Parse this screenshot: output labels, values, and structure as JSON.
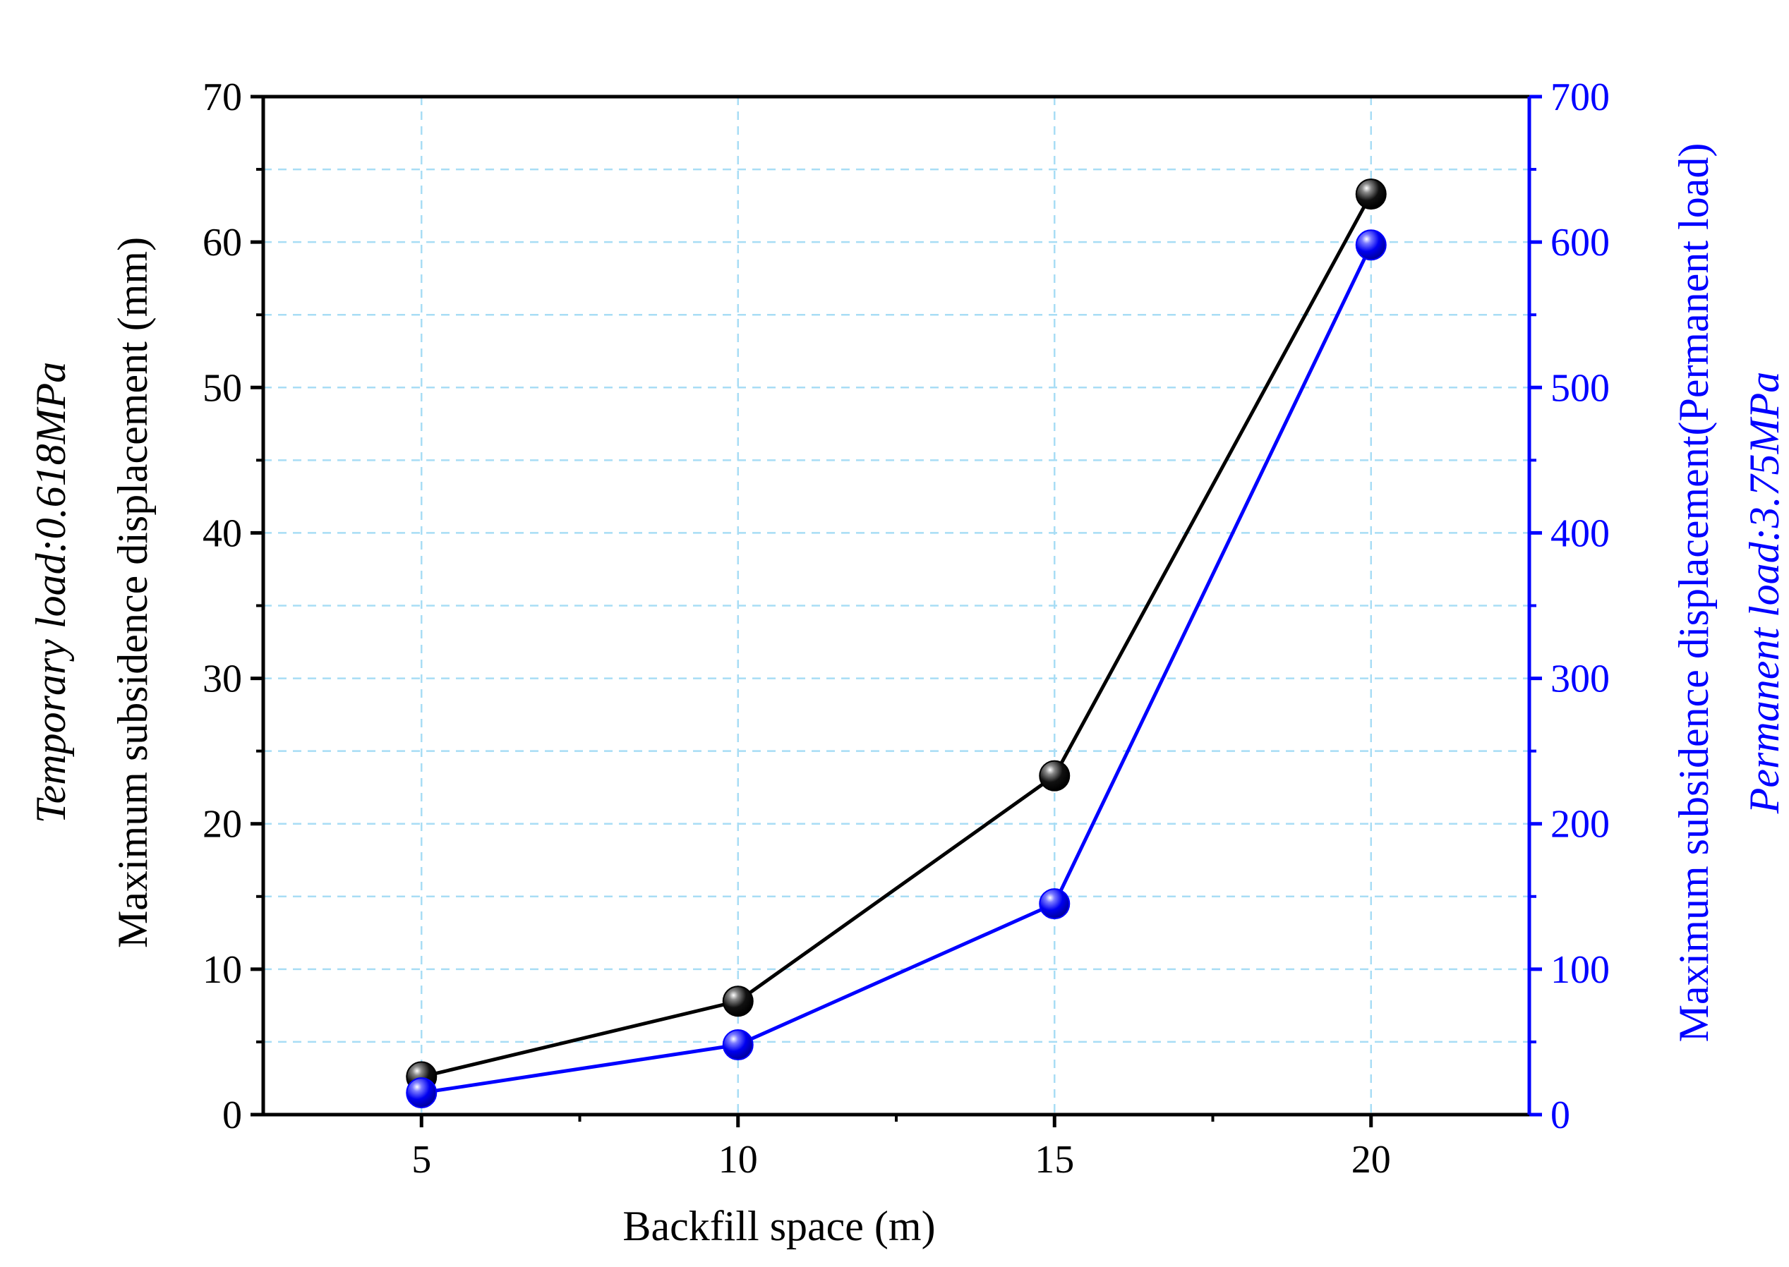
{
  "colors": {
    "left_axis": "#000000",
    "right_axis": "#0000ff",
    "series_temporary": "#000000",
    "series_permanent": "#0000ff",
    "grid": "#a8ddf5"
  },
  "labels": {
    "x_title": "Backfill space (m)",
    "y_left_title": "Maximum subsidence displacement (mm)",
    "y_left_subtitle": "Temporary load:0.618MPa",
    "y_right_title": "Maximum subsidence displacement(Permanent load)",
    "y_right_subtitle": "Permanent load:3.75MPa"
  },
  "chart_data": {
    "type": "line",
    "x": [
      5,
      10,
      15,
      20
    ],
    "xlim": [
      2.5,
      22.5
    ],
    "x_ticks": [
      "5",
      "10",
      "15",
      "20"
    ],
    "xlabel": "Backfill space (m)",
    "ylabel": "Maximum subsidence displacement (mm)",
    "ylabel_right": "Maximum subsidence displacement(Permanent load)",
    "ylim": [
      0,
      70
    ],
    "ylim_right": [
      0,
      700
    ],
    "y_ticks": [
      "0",
      "10",
      "20",
      "30",
      "40",
      "50",
      "60",
      "70"
    ],
    "y_ticks_right": [
      "0",
      "100",
      "200",
      "300",
      "400",
      "500",
      "600",
      "700"
    ],
    "grid": true,
    "grid_style": "dashed",
    "marker": "sphere",
    "series": [
      {
        "name": "Temporary load:0.618MPa",
        "axis": "left",
        "values": [
          2.6,
          7.8,
          23.3,
          63.3
        ]
      },
      {
        "name": "Permanent load:3.75MPa",
        "axis": "right",
        "values": [
          15,
          48,
          145,
          598
        ]
      }
    ]
  }
}
